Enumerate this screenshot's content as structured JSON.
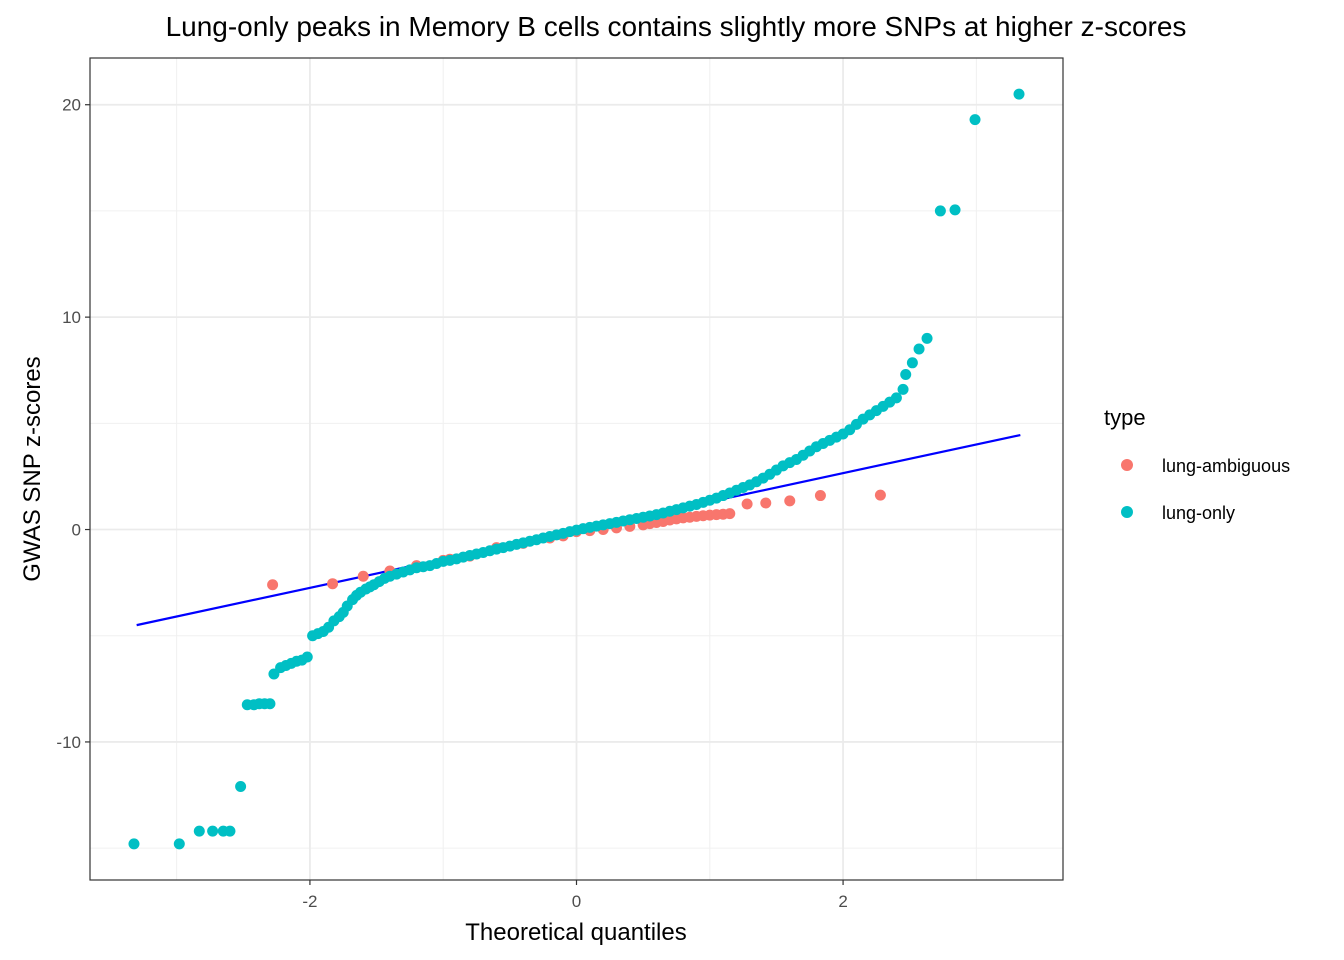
{
  "chart_data": {
    "type": "scatter",
    "title": "Lung-only peaks in Memory B cells contains slightly more SNPs at higher z-scores",
    "xlabel": "Theoretical quantiles",
    "ylabel": "GWAS SNP z-scores",
    "xlim": [
      -3.65,
      3.65
    ],
    "ylim": [
      -16.5,
      22.2
    ],
    "x_ticks": [
      -2,
      0,
      2
    ],
    "x_tick_labels": [
      "-2",
      "0",
      "2"
    ],
    "y_ticks": [
      -10,
      0,
      10,
      20
    ],
    "y_tick_labels": [
      "-10",
      "0",
      "10",
      "20"
    ],
    "x_minor": [
      -3,
      -1,
      1,
      3
    ],
    "y_minor": [
      -15,
      -5,
      5,
      15
    ],
    "grid": true,
    "legend_title": "type",
    "legend_position": "right",
    "reference_line": {
      "x": [
        -3.3,
        3.33
      ],
      "y": [
        -4.5,
        4.45
      ],
      "color": "#0000ff"
    },
    "series": [
      {
        "name": "lung-ambiguous",
        "color": "#F8766D",
        "points": [
          [
            -2.28,
            -2.6
          ],
          [
            -1.83,
            -2.55
          ],
          [
            -1.6,
            -2.2
          ],
          [
            -1.4,
            -1.95
          ],
          [
            -1.2,
            -1.7
          ],
          [
            -1.0,
            -1.45
          ],
          [
            -0.95,
            -1.4
          ],
          [
            -0.8,
            -1.25
          ],
          [
            -0.6,
            -0.85
          ],
          [
            -0.4,
            -0.65
          ],
          [
            -0.2,
            -0.4
          ],
          [
            -0.1,
            -0.3
          ],
          [
            0.0,
            -0.1
          ],
          [
            0.1,
            -0.05
          ],
          [
            0.2,
            0.0
          ],
          [
            0.3,
            0.08
          ],
          [
            0.4,
            0.15
          ],
          [
            0.5,
            0.22
          ],
          [
            0.55,
            0.28
          ],
          [
            0.6,
            0.33
          ],
          [
            0.65,
            0.38
          ],
          [
            0.7,
            0.45
          ],
          [
            0.75,
            0.5
          ],
          [
            0.8,
            0.55
          ],
          [
            0.85,
            0.58
          ],
          [
            0.9,
            0.62
          ],
          [
            0.95,
            0.65
          ],
          [
            1.0,
            0.68
          ],
          [
            1.05,
            0.7
          ],
          [
            1.1,
            0.72
          ],
          [
            1.15,
            0.75
          ],
          [
            1.28,
            1.2
          ],
          [
            1.42,
            1.25
          ],
          [
            1.6,
            1.35
          ],
          [
            1.83,
            1.6
          ],
          [
            2.28,
            1.62
          ]
        ]
      },
      {
        "name": "lung-only",
        "color": "#00BFC4",
        "points": [
          [
            -3.32,
            -14.8
          ],
          [
            -2.98,
            -14.8
          ],
          [
            -2.83,
            -14.2
          ],
          [
            -2.73,
            -14.2
          ],
          [
            -2.65,
            -14.2
          ],
          [
            -2.6,
            -14.2
          ],
          [
            -2.52,
            -12.1
          ],
          [
            -2.47,
            -8.25
          ],
          [
            -2.42,
            -8.25
          ],
          [
            -2.38,
            -8.2
          ],
          [
            -2.34,
            -8.2
          ],
          [
            -2.3,
            -8.2
          ],
          [
            -2.27,
            -6.8
          ],
          [
            -2.22,
            -6.5
          ],
          [
            -2.18,
            -6.4
          ],
          [
            -2.14,
            -6.3
          ],
          [
            -2.1,
            -6.2
          ],
          [
            -2.06,
            -6.15
          ],
          [
            -2.02,
            -6.0
          ],
          [
            -1.98,
            -5.0
          ],
          [
            -1.94,
            -4.9
          ],
          [
            -1.9,
            -4.8
          ],
          [
            -1.86,
            -4.6
          ],
          [
            -1.82,
            -4.3
          ],
          [
            -1.78,
            -4.1
          ],
          [
            -1.75,
            -3.9
          ],
          [
            -1.72,
            -3.6
          ],
          [
            -1.68,
            -3.3
          ],
          [
            -1.65,
            -3.1
          ],
          [
            -1.62,
            -2.95
          ],
          [
            -1.58,
            -2.8
          ],
          [
            -1.55,
            -2.7
          ],
          [
            -1.52,
            -2.6
          ],
          [
            -1.48,
            -2.45
          ],
          [
            -1.44,
            -2.3
          ],
          [
            -1.4,
            -2.2
          ],
          [
            -1.35,
            -2.1
          ],
          [
            -1.3,
            -2.0
          ],
          [
            -1.25,
            -1.9
          ],
          [
            -1.2,
            -1.8
          ],
          [
            -1.15,
            -1.75
          ],
          [
            -1.1,
            -1.7
          ],
          [
            -1.05,
            -1.6
          ],
          [
            -1.0,
            -1.5
          ],
          [
            -0.95,
            -1.45
          ],
          [
            -0.9,
            -1.38
          ],
          [
            -0.85,
            -1.3
          ],
          [
            -0.8,
            -1.22
          ],
          [
            -0.75,
            -1.15
          ],
          [
            -0.7,
            -1.08
          ],
          [
            -0.65,
            -1.0
          ],
          [
            -0.6,
            -0.92
          ],
          [
            -0.55,
            -0.85
          ],
          [
            -0.5,
            -0.78
          ],
          [
            -0.45,
            -0.7
          ],
          [
            -0.4,
            -0.63
          ],
          [
            -0.35,
            -0.55
          ],
          [
            -0.3,
            -0.48
          ],
          [
            -0.25,
            -0.4
          ],
          [
            -0.2,
            -0.33
          ],
          [
            -0.15,
            -0.25
          ],
          [
            -0.1,
            -0.18
          ],
          [
            -0.05,
            -0.1
          ],
          [
            0.0,
            -0.03
          ],
          [
            0.05,
            0.04
          ],
          [
            0.1,
            0.1
          ],
          [
            0.15,
            0.16
          ],
          [
            0.2,
            0.22
          ],
          [
            0.25,
            0.28
          ],
          [
            0.3,
            0.34
          ],
          [
            0.35,
            0.4
          ],
          [
            0.4,
            0.46
          ],
          [
            0.45,
            0.52
          ],
          [
            0.5,
            0.58
          ],
          [
            0.55,
            0.64
          ],
          [
            0.6,
            0.7
          ],
          [
            0.65,
            0.78
          ],
          [
            0.7,
            0.86
          ],
          [
            0.75,
            0.94
          ],
          [
            0.8,
            1.02
          ],
          [
            0.85,
            1.1
          ],
          [
            0.9,
            1.18
          ],
          [
            0.95,
            1.28
          ],
          [
            1.0,
            1.38
          ],
          [
            1.05,
            1.48
          ],
          [
            1.1,
            1.6
          ],
          [
            1.15,
            1.72
          ],
          [
            1.2,
            1.85
          ],
          [
            1.25,
            1.98
          ],
          [
            1.3,
            2.1
          ],
          [
            1.35,
            2.25
          ],
          [
            1.4,
            2.42
          ],
          [
            1.45,
            2.6
          ],
          [
            1.5,
            2.8
          ],
          [
            1.55,
            3.0
          ],
          [
            1.6,
            3.15
          ],
          [
            1.65,
            3.3
          ],
          [
            1.7,
            3.5
          ],
          [
            1.75,
            3.7
          ],
          [
            1.8,
            3.9
          ],
          [
            1.85,
            4.05
          ],
          [
            1.9,
            4.2
          ],
          [
            1.95,
            4.35
          ],
          [
            2.0,
            4.5
          ],
          [
            2.05,
            4.7
          ],
          [
            2.1,
            4.95
          ],
          [
            2.15,
            5.2
          ],
          [
            2.2,
            5.4
          ],
          [
            2.25,
            5.6
          ],
          [
            2.3,
            5.8
          ],
          [
            2.35,
            6.0
          ],
          [
            2.4,
            6.2
          ],
          [
            2.45,
            6.6
          ],
          [
            2.47,
            7.3
          ],
          [
            2.52,
            7.85
          ],
          [
            2.57,
            8.5
          ],
          [
            2.63,
            9.0
          ],
          [
            2.73,
            15.0
          ],
          [
            2.84,
            15.05
          ],
          [
            2.99,
            19.3
          ],
          [
            3.32,
            20.5
          ]
        ]
      }
    ]
  }
}
